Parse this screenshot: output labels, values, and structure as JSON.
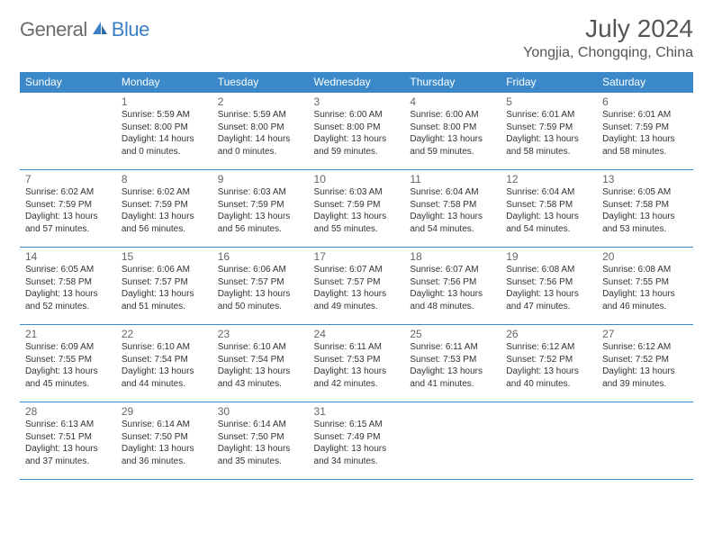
{
  "logo": {
    "general": "General",
    "blue": "Blue"
  },
  "header": {
    "title": "July 2024",
    "location": "Yongjia, Chongqing, China"
  },
  "colors": {
    "accent": "#3b89c9",
    "logo_blue": "#3b7fc4",
    "text_gray": "#555"
  },
  "dayNames": [
    "Sunday",
    "Monday",
    "Tuesday",
    "Wednesday",
    "Thursday",
    "Friday",
    "Saturday"
  ],
  "weeks": [
    [
      null,
      {
        "n": "1",
        "sr": "Sunrise: 5:59 AM",
        "ss": "Sunset: 8:00 PM",
        "dl1": "Daylight: 14 hours",
        "dl2": "and 0 minutes."
      },
      {
        "n": "2",
        "sr": "Sunrise: 5:59 AM",
        "ss": "Sunset: 8:00 PM",
        "dl1": "Daylight: 14 hours",
        "dl2": "and 0 minutes."
      },
      {
        "n": "3",
        "sr": "Sunrise: 6:00 AM",
        "ss": "Sunset: 8:00 PM",
        "dl1": "Daylight: 13 hours",
        "dl2": "and 59 minutes."
      },
      {
        "n": "4",
        "sr": "Sunrise: 6:00 AM",
        "ss": "Sunset: 8:00 PM",
        "dl1": "Daylight: 13 hours",
        "dl2": "and 59 minutes."
      },
      {
        "n": "5",
        "sr": "Sunrise: 6:01 AM",
        "ss": "Sunset: 7:59 PM",
        "dl1": "Daylight: 13 hours",
        "dl2": "and 58 minutes."
      },
      {
        "n": "6",
        "sr": "Sunrise: 6:01 AM",
        "ss": "Sunset: 7:59 PM",
        "dl1": "Daylight: 13 hours",
        "dl2": "and 58 minutes."
      }
    ],
    [
      {
        "n": "7",
        "sr": "Sunrise: 6:02 AM",
        "ss": "Sunset: 7:59 PM",
        "dl1": "Daylight: 13 hours",
        "dl2": "and 57 minutes."
      },
      {
        "n": "8",
        "sr": "Sunrise: 6:02 AM",
        "ss": "Sunset: 7:59 PM",
        "dl1": "Daylight: 13 hours",
        "dl2": "and 56 minutes."
      },
      {
        "n": "9",
        "sr": "Sunrise: 6:03 AM",
        "ss": "Sunset: 7:59 PM",
        "dl1": "Daylight: 13 hours",
        "dl2": "and 56 minutes."
      },
      {
        "n": "10",
        "sr": "Sunrise: 6:03 AM",
        "ss": "Sunset: 7:59 PM",
        "dl1": "Daylight: 13 hours",
        "dl2": "and 55 minutes."
      },
      {
        "n": "11",
        "sr": "Sunrise: 6:04 AM",
        "ss": "Sunset: 7:58 PM",
        "dl1": "Daylight: 13 hours",
        "dl2": "and 54 minutes."
      },
      {
        "n": "12",
        "sr": "Sunrise: 6:04 AM",
        "ss": "Sunset: 7:58 PM",
        "dl1": "Daylight: 13 hours",
        "dl2": "and 54 minutes."
      },
      {
        "n": "13",
        "sr": "Sunrise: 6:05 AM",
        "ss": "Sunset: 7:58 PM",
        "dl1": "Daylight: 13 hours",
        "dl2": "and 53 minutes."
      }
    ],
    [
      {
        "n": "14",
        "sr": "Sunrise: 6:05 AM",
        "ss": "Sunset: 7:58 PM",
        "dl1": "Daylight: 13 hours",
        "dl2": "and 52 minutes."
      },
      {
        "n": "15",
        "sr": "Sunrise: 6:06 AM",
        "ss": "Sunset: 7:57 PM",
        "dl1": "Daylight: 13 hours",
        "dl2": "and 51 minutes."
      },
      {
        "n": "16",
        "sr": "Sunrise: 6:06 AM",
        "ss": "Sunset: 7:57 PM",
        "dl1": "Daylight: 13 hours",
        "dl2": "and 50 minutes."
      },
      {
        "n": "17",
        "sr": "Sunrise: 6:07 AM",
        "ss": "Sunset: 7:57 PM",
        "dl1": "Daylight: 13 hours",
        "dl2": "and 49 minutes."
      },
      {
        "n": "18",
        "sr": "Sunrise: 6:07 AM",
        "ss": "Sunset: 7:56 PM",
        "dl1": "Daylight: 13 hours",
        "dl2": "and 48 minutes."
      },
      {
        "n": "19",
        "sr": "Sunrise: 6:08 AM",
        "ss": "Sunset: 7:56 PM",
        "dl1": "Daylight: 13 hours",
        "dl2": "and 47 minutes."
      },
      {
        "n": "20",
        "sr": "Sunrise: 6:08 AM",
        "ss": "Sunset: 7:55 PM",
        "dl1": "Daylight: 13 hours",
        "dl2": "and 46 minutes."
      }
    ],
    [
      {
        "n": "21",
        "sr": "Sunrise: 6:09 AM",
        "ss": "Sunset: 7:55 PM",
        "dl1": "Daylight: 13 hours",
        "dl2": "and 45 minutes."
      },
      {
        "n": "22",
        "sr": "Sunrise: 6:10 AM",
        "ss": "Sunset: 7:54 PM",
        "dl1": "Daylight: 13 hours",
        "dl2": "and 44 minutes."
      },
      {
        "n": "23",
        "sr": "Sunrise: 6:10 AM",
        "ss": "Sunset: 7:54 PM",
        "dl1": "Daylight: 13 hours",
        "dl2": "and 43 minutes."
      },
      {
        "n": "24",
        "sr": "Sunrise: 6:11 AM",
        "ss": "Sunset: 7:53 PM",
        "dl1": "Daylight: 13 hours",
        "dl2": "and 42 minutes."
      },
      {
        "n": "25",
        "sr": "Sunrise: 6:11 AM",
        "ss": "Sunset: 7:53 PM",
        "dl1": "Daylight: 13 hours",
        "dl2": "and 41 minutes."
      },
      {
        "n": "26",
        "sr": "Sunrise: 6:12 AM",
        "ss": "Sunset: 7:52 PM",
        "dl1": "Daylight: 13 hours",
        "dl2": "and 40 minutes."
      },
      {
        "n": "27",
        "sr": "Sunrise: 6:12 AM",
        "ss": "Sunset: 7:52 PM",
        "dl1": "Daylight: 13 hours",
        "dl2": "and 39 minutes."
      }
    ],
    [
      {
        "n": "28",
        "sr": "Sunrise: 6:13 AM",
        "ss": "Sunset: 7:51 PM",
        "dl1": "Daylight: 13 hours",
        "dl2": "and 37 minutes."
      },
      {
        "n": "29",
        "sr": "Sunrise: 6:14 AM",
        "ss": "Sunset: 7:50 PM",
        "dl1": "Daylight: 13 hours",
        "dl2": "and 36 minutes."
      },
      {
        "n": "30",
        "sr": "Sunrise: 6:14 AM",
        "ss": "Sunset: 7:50 PM",
        "dl1": "Daylight: 13 hours",
        "dl2": "and 35 minutes."
      },
      {
        "n": "31",
        "sr": "Sunrise: 6:15 AM",
        "ss": "Sunset: 7:49 PM",
        "dl1": "Daylight: 13 hours",
        "dl2": "and 34 minutes."
      },
      null,
      null,
      null
    ]
  ]
}
